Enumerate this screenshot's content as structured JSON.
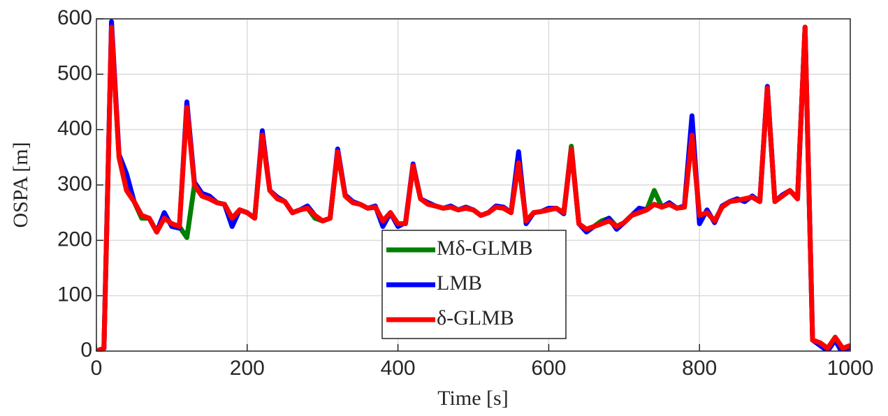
{
  "chart_data": {
    "type": "line",
    "x_label": "Time [s]",
    "y_label": "OSPA [m]",
    "x": [
      0,
      10,
      20,
      30,
      40,
      50,
      60,
      70,
      80,
      90,
      100,
      110,
      120,
      130,
      140,
      150,
      160,
      170,
      180,
      190,
      200,
      210,
      220,
      230,
      240,
      250,
      260,
      270,
      280,
      290,
      300,
      310,
      320,
      330,
      340,
      350,
      360,
      370,
      380,
      390,
      400,
      410,
      420,
      430,
      440,
      450,
      460,
      470,
      480,
      490,
      500,
      510,
      520,
      530,
      540,
      550,
      560,
      570,
      580,
      590,
      600,
      610,
      620,
      630,
      640,
      650,
      660,
      670,
      680,
      690,
      700,
      710,
      720,
      730,
      740,
      750,
      760,
      770,
      780,
      790,
      800,
      810,
      820,
      830,
      840,
      850,
      860,
      870,
      880,
      890,
      900,
      910,
      920,
      930,
      940,
      950,
      960,
      970,
      980,
      990,
      1000
    ],
    "series": [
      {
        "name": "Mδ-GLMB",
        "color": "#008000",
        "values": [
          0,
          5,
          585,
          350,
          290,
          270,
          240,
          240,
          215,
          240,
          230,
          225,
          205,
          300,
          280,
          275,
          268,
          265,
          240,
          255,
          250,
          240,
          390,
          290,
          275,
          270,
          250,
          255,
          258,
          240,
          235,
          240,
          360,
          280,
          268,
          265,
          258,
          260,
          235,
          250,
          230,
          230,
          335,
          275,
          265,
          262,
          258,
          260,
          255,
          258,
          255,
          245,
          250,
          260,
          258,
          250,
          340,
          235,
          250,
          252,
          255,
          258,
          250,
          370,
          230,
          220,
          225,
          235,
          240,
          225,
          232,
          245,
          250,
          255,
          290,
          260,
          265,
          258,
          260,
          390,
          245,
          250,
          235,
          260,
          270,
          272,
          275,
          278,
          270,
          475,
          270,
          280,
          290,
          275,
          585,
          20,
          15,
          5,
          25,
          5,
          10
        ]
      },
      {
        "name": "LMB",
        "color": "#0000ff",
        "values": [
          0,
          5,
          595,
          355,
          320,
          270,
          245,
          240,
          215,
          250,
          225,
          222,
          450,
          305,
          285,
          280,
          268,
          265,
          225,
          255,
          250,
          240,
          398,
          290,
          278,
          270,
          250,
          255,
          262,
          245,
          235,
          240,
          365,
          282,
          270,
          265,
          258,
          262,
          225,
          250,
          225,
          232,
          338,
          275,
          268,
          262,
          258,
          262,
          255,
          260,
          255,
          245,
          250,
          262,
          260,
          250,
          360,
          230,
          250,
          252,
          258,
          258,
          248,
          365,
          230,
          215,
          225,
          230,
          240,
          220,
          232,
          245,
          258,
          255,
          265,
          260,
          268,
          258,
          262,
          425,
          230,
          255,
          232,
          262,
          270,
          275,
          270,
          280,
          270,
          478,
          270,
          282,
          290,
          275,
          585,
          20,
          10,
          0,
          20,
          -5,
          10
        ]
      },
      {
        "name": "δ-GLMB",
        "color": "#ff0000",
        "values": [
          0,
          5,
          585,
          350,
          290,
          270,
          245,
          240,
          215,
          240,
          230,
          225,
          440,
          300,
          280,
          275,
          268,
          265,
          240,
          255,
          250,
          240,
          390,
          290,
          275,
          270,
          250,
          255,
          258,
          245,
          235,
          240,
          360,
          280,
          268,
          265,
          258,
          260,
          235,
          250,
          230,
          230,
          335,
          275,
          265,
          262,
          258,
          260,
          255,
          258,
          255,
          245,
          250,
          260,
          258,
          250,
          340,
          235,
          250,
          252,
          255,
          258,
          250,
          365,
          230,
          220,
          225,
          230,
          235,
          225,
          232,
          245,
          250,
          255,
          265,
          260,
          265,
          258,
          260,
          390,
          245,
          250,
          235,
          260,
          270,
          272,
          275,
          278,
          270,
          475,
          270,
          280,
          290,
          275,
          585,
          20,
          15,
          5,
          25,
          5,
          10
        ]
      }
    ],
    "xlim": [
      0,
      1000
    ],
    "xticks": [
      0,
      200,
      400,
      600,
      800,
      1000
    ],
    "ylim": [
      0,
      600
    ],
    "yticks": [
      0,
      100,
      200,
      300,
      400,
      500,
      600
    ],
    "grid": true,
    "legend": "bottom-center"
  }
}
